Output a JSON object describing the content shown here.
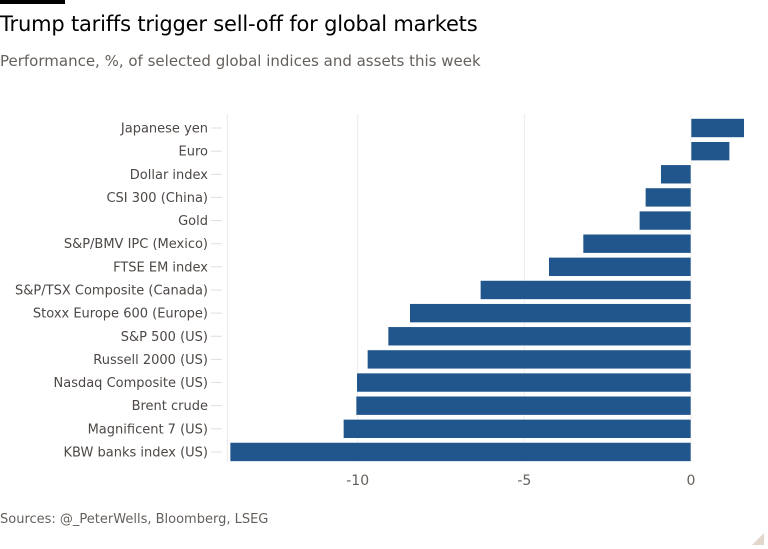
{
  "title": "Trump tariffs trigger sell-off for global markets",
  "subtitle": "Performance, %, of selected global indices and assets this week",
  "source": "Sources: @_PeterWells, Bloomberg, LSEG",
  "colors": {
    "bar": "#20568c"
  },
  "chart_data": {
    "type": "bar",
    "orientation": "horizontal",
    "categories": [
      "Japanese yen",
      "Euro",
      "Dollar index",
      "CSI 300 (China)",
      "Gold",
      "S&P/BMV IPC (Mexico)",
      "FTSE EM index",
      "S&P/TSX Composite (Canada)",
      "Stoxx Europe 600 (Europe)",
      "S&P 500 (US)",
      "Russell 2000 (US)",
      "Nasdaq Composite (US)",
      "Brent crude",
      "Magnificent 7 (US)",
      "KBW banks index (US)"
    ],
    "values": [
      1.6,
      1.16,
      -0.91,
      -1.37,
      -1.55,
      -3.24,
      -4.27,
      -6.32,
      -8.44,
      -9.09,
      -9.71,
      -10.03,
      -10.05,
      -10.43,
      -13.83
    ],
    "xlim": [
      -14,
      1.7
    ],
    "xticks": [
      -10,
      -5,
      0
    ],
    "xtick_labels": [
      "-10",
      "-5",
      "0"
    ],
    "grid": "vertical",
    "legend": "none"
  }
}
